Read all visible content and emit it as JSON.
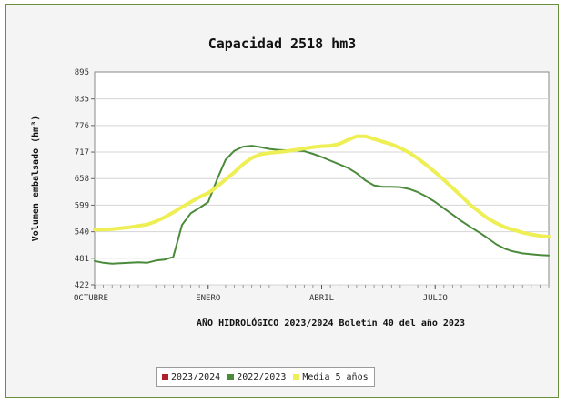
{
  "chart_data": {
    "type": "line",
    "title": "Capacidad 2518 hm3",
    "xlabel": "AÑO HIDROLÓGICO 2023/2024 Boletín 40 del año 2023",
    "ylabel": "Volumen embalsado (hm³)",
    "ylim": [
      422,
      895
    ],
    "yticks": [
      422,
      481,
      540,
      599,
      658,
      717,
      776,
      835
    ],
    "xlim": [
      0,
      52
    ],
    "xticks": [
      {
        "x": 0,
        "label": "OCTUBRE"
      },
      {
        "x": 13,
        "label": "ENERO"
      },
      {
        "x": 26,
        "label": "ABRIL"
      },
      {
        "x": 39,
        "label": "JULIO"
      }
    ],
    "grid": true,
    "legend_position": "bottom",
    "series": [
      {
        "name": "2023/2024",
        "color": "#b0202a",
        "x": [],
        "values": []
      },
      {
        "name": "2022/2023",
        "color": "#4a8a3a",
        "x": [
          0,
          1,
          2,
          3,
          4,
          5,
          6,
          7,
          8,
          9,
          10,
          11,
          12,
          13,
          14,
          15,
          16,
          17,
          18,
          19,
          20,
          21,
          22,
          23,
          24,
          25,
          26,
          27,
          28,
          29,
          30,
          31,
          32,
          33,
          34,
          35,
          36,
          37,
          38,
          39,
          40,
          41,
          42,
          43,
          44,
          45,
          46,
          47,
          48,
          49,
          50,
          51,
          52
        ],
        "values": [
          475,
          471,
          469,
          470,
          471,
          472,
          471,
          476,
          478,
          484,
          555,
          581,
          593,
          606,
          655,
          700,
          720,
          729,
          731,
          728,
          724,
          722,
          721,
          721,
          719,
          713,
          706,
          698,
          690,
          682,
          670,
          654,
          643,
          640,
          640,
          639,
          635,
          628,
          618,
          606,
          592,
          578,
          564,
          551,
          539,
          526,
          512,
          502,
          496,
          492,
          490,
          488,
          487
        ]
      },
      {
        "name": "Media 5 años",
        "color": "#eeee55",
        "x": [
          0,
          1,
          2,
          3,
          4,
          5,
          6,
          7,
          8,
          9,
          10,
          11,
          12,
          13,
          14,
          15,
          16,
          17,
          18,
          19,
          20,
          21,
          22,
          23,
          24,
          25,
          26,
          27,
          28,
          29,
          30,
          31,
          32,
          33,
          34,
          35,
          36,
          37,
          38,
          39,
          40,
          41,
          42,
          43,
          44,
          45,
          46,
          47,
          48,
          49,
          50,
          51,
          52
        ],
        "values": [
          545,
          545,
          546,
          548,
          550,
          553,
          556,
          563,
          572,
          583,
          595,
          606,
          617,
          626,
          640,
          656,
          672,
          690,
          704,
          712,
          715,
          717,
          719,
          722,
          725,
          728,
          730,
          731,
          735,
          744,
          752,
          752,
          746,
          740,
          734,
          726,
          716,
          703,
          688,
          672,
          655,
          637,
          619,
          600,
          585,
          570,
          559,
          550,
          544,
          538,
          534,
          531,
          529
        ]
      }
    ]
  }
}
